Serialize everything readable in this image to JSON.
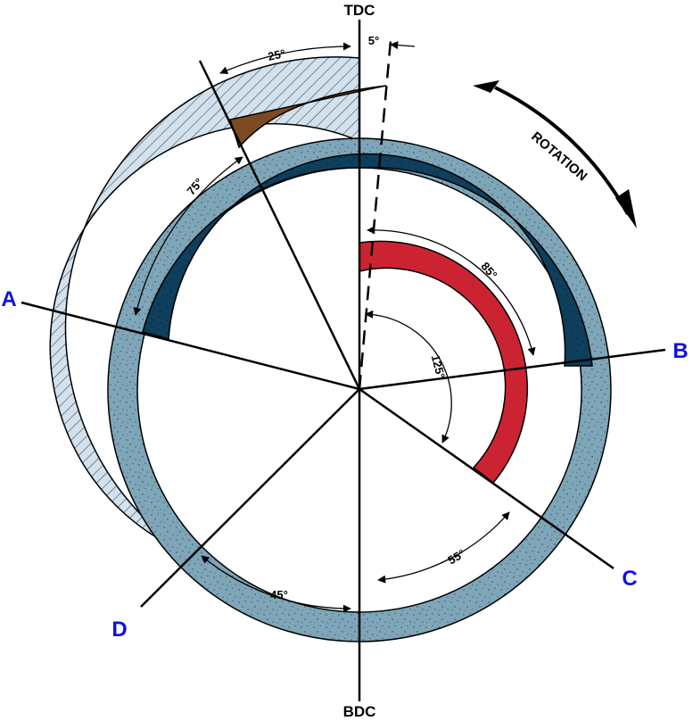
{
  "labels": {
    "tdc": "TDC",
    "bdc": "BDC",
    "rotation": "ROTATION",
    "point_a": "A",
    "point_b": "B",
    "point_c": "C",
    "point_d": "D"
  },
  "angles": {
    "a25": "25°",
    "a5": "5°",
    "a75": "75°",
    "a85": "85°",
    "a125": "125°",
    "a55": "55°",
    "a45": "45°"
  },
  "colors": {
    "outer_band": "#7ea6b8",
    "inner_band": "#0e3f5c",
    "red_arc": "#cc2333",
    "brown_wedge": "#7b4a22",
    "hatch_band": "#d3e1ec",
    "label_blue": "#1111e0"
  }
}
